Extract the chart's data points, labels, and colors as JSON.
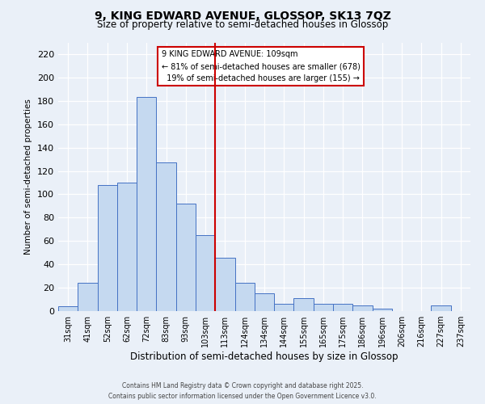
{
  "title_line1": "9, KING EDWARD AVENUE, GLOSSOP, SK13 7QZ",
  "title_line2": "Size of property relative to semi-detached houses in Glossop",
  "xlabel": "Distribution of semi-detached houses by size in Glossop",
  "ylabel": "Number of semi-detached properties",
  "categories": [
    "31sqm",
    "41sqm",
    "52sqm",
    "62sqm",
    "72sqm",
    "83sqm",
    "93sqm",
    "103sqm",
    "113sqm",
    "124sqm",
    "134sqm",
    "144sqm",
    "155sqm",
    "165sqm",
    "175sqm",
    "186sqm",
    "196sqm",
    "206sqm",
    "216sqm",
    "227sqm",
    "237sqm"
  ],
  "values": [
    4,
    24,
    108,
    110,
    183,
    127,
    92,
    65,
    46,
    24,
    15,
    6,
    11,
    6,
    6,
    5,
    2,
    0,
    0,
    5,
    0
  ],
  "bar_color": "#c5d9f0",
  "bar_edge_color": "#4472c4",
  "property_label": "9 KING EDWARD AVENUE: 109sqm",
  "pct_smaller": 81,
  "count_smaller": 678,
  "pct_larger": 19,
  "count_larger": 155,
  "vline_x_index": 7.5,
  "vline_color": "#cc0000",
  "ylim": [
    0,
    230
  ],
  "yticks": [
    0,
    20,
    40,
    60,
    80,
    100,
    120,
    140,
    160,
    180,
    200,
    220
  ],
  "annotation_box_color": "#ffffff",
  "annotation_box_edge": "#cc0000",
  "footer_line1": "Contains HM Land Registry data © Crown copyright and database right 2025.",
  "footer_line2": "Contains public sector information licensed under the Open Government Licence v3.0.",
  "bg_color": "#eaf0f8",
  "plot_bg_color": "#eaf0f8"
}
